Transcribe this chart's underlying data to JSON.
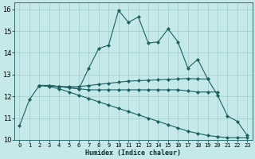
{
  "xlabel": "Humidex (Indice chaleur)",
  "ylabel": "",
  "xlim": [
    -0.5,
    23.5
  ],
  "ylim": [
    10,
    16.3
  ],
  "background_color": "#c5e8e8",
  "grid_color": "#a8d0d0",
  "line_color": "#1a6060",
  "lines": [
    {
      "x": [
        0,
        1,
        2,
        3,
        4,
        5,
        6,
        7,
        8,
        9,
        10,
        11,
        12,
        13,
        14,
        15,
        16,
        17,
        18,
        19,
        20,
        21,
        22,
        23
      ],
      "y": [
        10.65,
        11.85,
        12.5,
        12.5,
        12.45,
        12.4,
        12.35,
        13.3,
        14.2,
        14.35,
        15.95,
        15.4,
        15.65,
        14.45,
        14.5,
        15.1,
        14.5,
        13.3,
        13.7,
        12.8,
        12.05,
        11.1,
        10.85,
        10.2
      ]
    },
    {
      "x": [
        2,
        3,
        4,
        5,
        6,
        7,
        8,
        9,
        10,
        11,
        12,
        13,
        14,
        15,
        16,
        17,
        18,
        19
      ],
      "y": [
        12.5,
        12.5,
        12.45,
        12.45,
        12.45,
        12.5,
        12.55,
        12.6,
        12.65,
        12.7,
        12.72,
        12.74,
        12.76,
        12.78,
        12.8,
        12.82,
        12.8,
        12.8
      ]
    },
    {
      "x": [
        2,
        3,
        4,
        5,
        6,
        7,
        8,
        9,
        10,
        11,
        12,
        13,
        14,
        15,
        16,
        17,
        18,
        19,
        20
      ],
      "y": [
        12.5,
        12.5,
        12.45,
        12.4,
        12.35,
        12.3,
        12.3,
        12.3,
        12.3,
        12.3,
        12.3,
        12.3,
        12.3,
        12.3,
        12.3,
        12.25,
        12.2,
        12.2,
        12.2
      ]
    },
    {
      "x": [
        2,
        3,
        4,
        5,
        6,
        7,
        8,
        9,
        10,
        11,
        12,
        13,
        14,
        15,
        16,
        17,
        18,
        19,
        20,
        21,
        22,
        23
      ],
      "y": [
        12.5,
        12.45,
        12.35,
        12.2,
        12.05,
        11.9,
        11.75,
        11.6,
        11.45,
        11.3,
        11.15,
        11.0,
        10.85,
        10.7,
        10.55,
        10.4,
        10.3,
        10.2,
        10.15,
        10.1,
        10.1,
        10.1
      ]
    }
  ],
  "yticks": [
    10,
    11,
    12,
    13,
    14,
    15,
    16
  ],
  "xticks": [
    0,
    1,
    2,
    3,
    4,
    5,
    6,
    7,
    8,
    9,
    10,
    11,
    12,
    13,
    14,
    15,
    16,
    17,
    18,
    19,
    20,
    21,
    22,
    23
  ]
}
